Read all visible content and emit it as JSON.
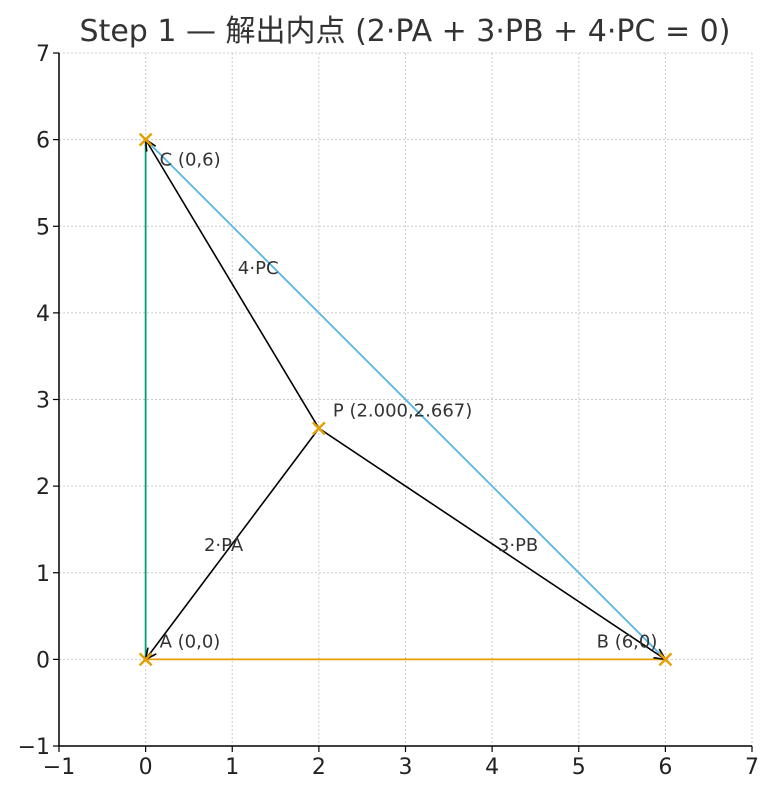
{
  "chart_data": {
    "type": "line",
    "title": "Step 1 — 解出内点 (2·PA + 3·PB + 4·PC = 0)",
    "xlabel": "",
    "ylabel": "",
    "xlim": [
      -1,
      7
    ],
    "ylim": [
      -1,
      7
    ],
    "grid": true,
    "x_ticks": [
      -1,
      0,
      1,
      2,
      3,
      4,
      5,
      6,
      7
    ],
    "y_ticks": [
      -1,
      0,
      1,
      2,
      3,
      4,
      5,
      6,
      7
    ],
    "x_tick_labels": [
      "−1",
      "0",
      "1",
      "2",
      "3",
      "4",
      "5",
      "6",
      "7"
    ],
    "y_tick_labels": [
      "−1",
      "0",
      "1",
      "2",
      "3",
      "4",
      "5",
      "6",
      "7"
    ],
    "sides": [
      {
        "from": [
          0,
          0
        ],
        "to": [
          6,
          0
        ],
        "color": "#e69f00"
      },
      {
        "from": [
          6,
          0
        ],
        "to": [
          0,
          6
        ],
        "color": "#56b4e9"
      },
      {
        "from": [
          0,
          6
        ],
        "to": [
          0,
          0
        ],
        "color": "#009e73"
      }
    ],
    "points": [
      {
        "name": "A",
        "x": 0,
        "y": 0,
        "label": "A (0,0)"
      },
      {
        "name": "B",
        "x": 6,
        "y": 0,
        "label": "B (6,0)"
      },
      {
        "name": "C",
        "x": 0,
        "y": 6,
        "label": "C (0,6)"
      },
      {
        "name": "P",
        "x": 2.0,
        "y": 2.667,
        "label": "P (2.000,2.667)"
      }
    ],
    "vectors": [
      {
        "from": [
          2.0,
          2.667
        ],
        "to": [
          0,
          0
        ],
        "label": "2·PA",
        "label_at": [
          0.9,
          1.25
        ]
      },
      {
        "from": [
          2.0,
          2.667
        ],
        "to": [
          6,
          0
        ],
        "label": "3·PB",
        "label_at": [
          4.3,
          1.25
        ]
      },
      {
        "from": [
          2.0,
          2.667
        ],
        "to": [
          0,
          6
        ],
        "label": "4·PC",
        "label_at": [
          1.3,
          4.45
        ]
      }
    ],
    "marker_color": "#e69f00",
    "vector_color": "#000000"
  }
}
